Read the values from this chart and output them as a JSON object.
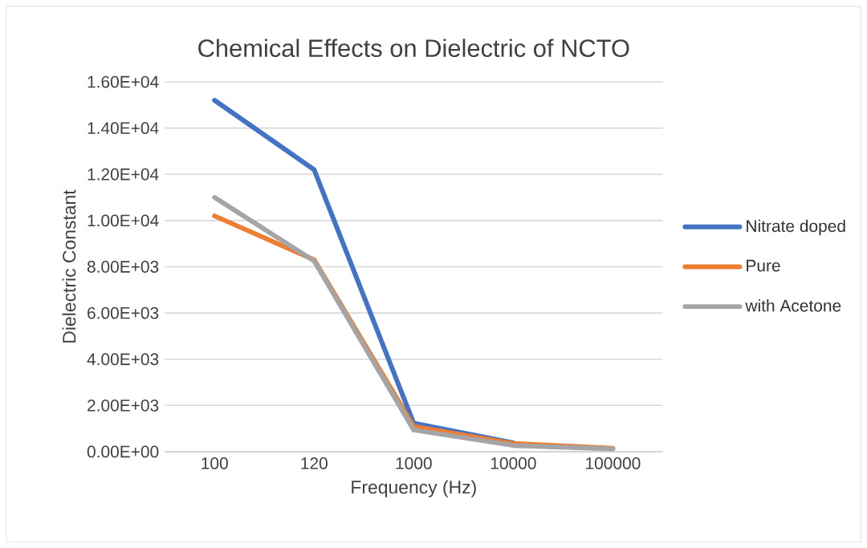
{
  "chart_data": {
    "type": "line",
    "title": "Chemical Effects on Dielectric of NCTO",
    "xlabel": "Frequency (Hz)",
    "ylabel": "Dielectric Constant",
    "categories": [
      "100",
      "120",
      "1000",
      "10000",
      "100000"
    ],
    "series": [
      {
        "name": "Nitrate doped",
        "color": "#4472c4",
        "values": [
          15200,
          12200,
          1230,
          380,
          null
        ]
      },
      {
        "name": "Pure",
        "color": "#ed7d31",
        "values": [
          10200,
          8300,
          1090,
          350,
          150
        ]
      },
      {
        "name": "with Acetone",
        "color": "#a5a5a5",
        "values": [
          11000,
          8250,
          940,
          270,
          120
        ]
      }
    ],
    "ylim": [
      0,
      16000
    ],
    "yticks": [
      {
        "value": 0,
        "label": "0.00E+00"
      },
      {
        "value": 2000,
        "label": "2.00E+03"
      },
      {
        "value": 4000,
        "label": "4.00E+03"
      },
      {
        "value": 6000,
        "label": "6.00E+03"
      },
      {
        "value": 8000,
        "label": "8.00E+03"
      },
      {
        "value": 10000,
        "label": "1.00E+04"
      },
      {
        "value": 12000,
        "label": "1.20E+04"
      },
      {
        "value": 14000,
        "label": "1.40E+04"
      },
      {
        "value": 16000,
        "label": "1.60E+04"
      }
    ],
    "grid": "y",
    "legend": "right",
    "marker": "none",
    "line_style": "solid"
  }
}
